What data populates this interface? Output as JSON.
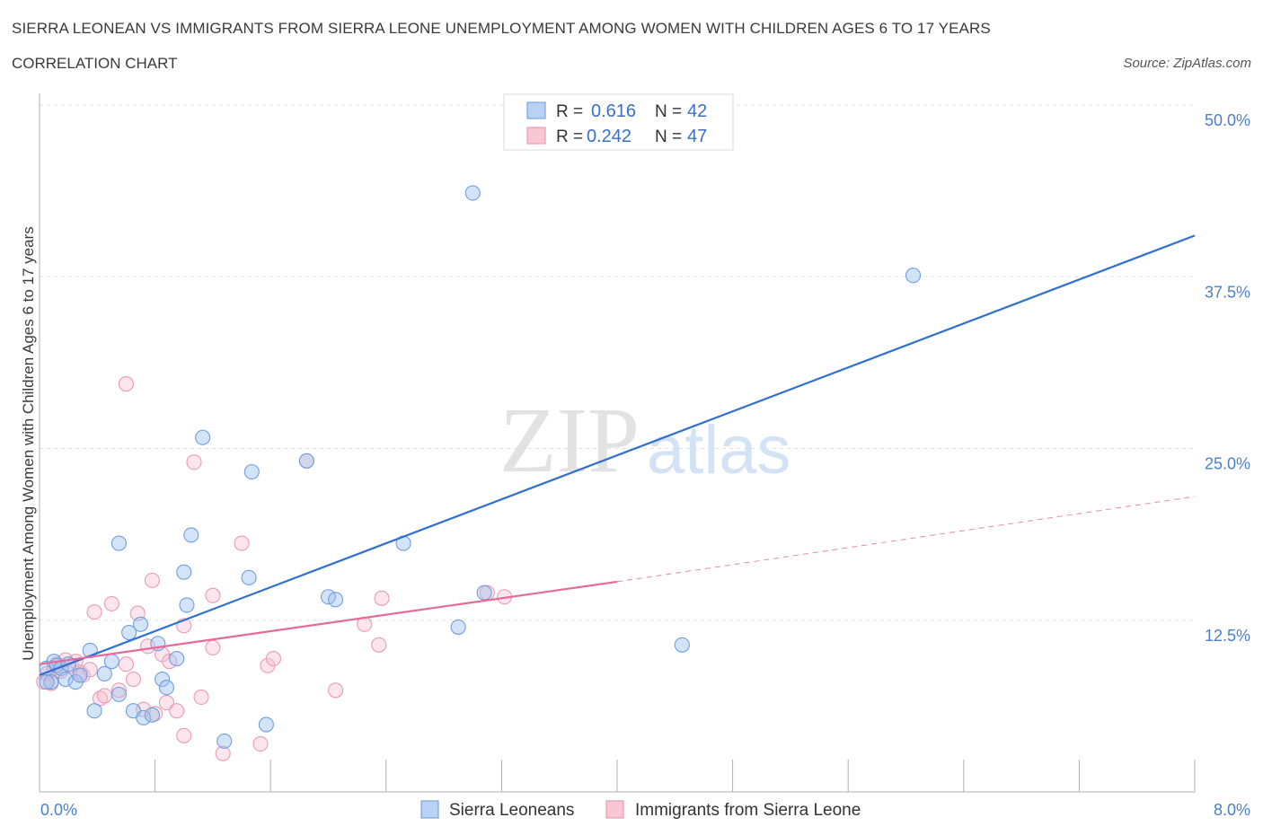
{
  "header": {
    "title": "SIERRA LEONEAN VS IMMIGRANTS FROM SIERRA LEONE UNEMPLOYMENT AMONG WOMEN WITH CHILDREN AGES 6 TO 17 YEARS",
    "subtitle": "CORRELATION CHART",
    "source": "Source: ZipAtlas.com"
  },
  "watermark": {
    "zip": "ZIP",
    "atlas": "atlas"
  },
  "stats_box": {
    "rows": [
      {
        "r_label": "R =",
        "r_value": "0.616",
        "n_label": "N =",
        "n_value": "42",
        "swatch_fill": "#b9d1f2",
        "swatch_stroke": "#7aa3de"
      },
      {
        "r_label": "R =",
        "r_value": "0.242",
        "n_label": "N =",
        "n_value": "47",
        "swatch_fill": "#f8c6d5",
        "swatch_stroke": "#e89ab3"
      }
    ]
  },
  "legend": {
    "items": [
      {
        "label": "Sierra Leoneans",
        "fill": "#b9d1f2",
        "stroke": "#7aa3de"
      },
      {
        "label": "Immigrants from Sierra Leone",
        "fill": "#f8c6d5",
        "stroke": "#e89ab3"
      }
    ]
  },
  "colors": {
    "blue_point_fill": "rgba(160,195,240,0.45)",
    "blue_point_stroke": "#6f9ee0",
    "blue_line": "#2f6fcf",
    "pink_point_fill": "rgba(248,190,208,0.40)",
    "pink_point_stroke": "#eb9ab6",
    "pink_line": "#e56a98",
    "grid": "#dfe3ea",
    "axis": "#b0b0b0"
  },
  "chart_data": {
    "type": "scatter",
    "title": "SIERRA LEONEAN VS IMMIGRANTS FROM SIERRA LEONE UNEMPLOYMENT AMONG WOMEN WITH CHILDREN AGES 6 TO 17 YEARS",
    "subtitle": "CORRELATION CHART",
    "xlabel": "",
    "ylabel": "Unemployment Among Women with Children Ages 6 to 17 years",
    "xlim": [
      0,
      8
    ],
    "ylim": [
      0,
      50
    ],
    "x_tick_labels": [
      {
        "value": 0,
        "label": "0.0%"
      },
      {
        "value": 8,
        "label": "8.0%"
      }
    ],
    "y_tick_labels": [
      {
        "value": 12.5,
        "label": "12.5%"
      },
      {
        "value": 25,
        "label": "25.0%"
      },
      {
        "value": 37.5,
        "label": "37.5%"
      },
      {
        "value": 50,
        "label": "50.0%"
      }
    ],
    "grid": true,
    "legend_position": "bottom",
    "series": [
      {
        "name": "Sierra Leoneans",
        "R": 0.616,
        "N": 42,
        "trend": {
          "x": [
            0.0,
            8.0
          ],
          "y": [
            8.5,
            40.5
          ],
          "style": "solid"
        },
        "points": [
          [
            0.05,
            9.0
          ],
          [
            0.08,
            8.0
          ],
          [
            0.1,
            9.5
          ],
          [
            0.12,
            9.2
          ],
          [
            0.15,
            9.0
          ],
          [
            0.18,
            8.2
          ],
          [
            0.2,
            9.3
          ],
          [
            0.25,
            8.0
          ],
          [
            0.28,
            8.5
          ],
          [
            0.35,
            10.3
          ],
          [
            0.38,
            5.9
          ],
          [
            0.45,
            8.6
          ],
          [
            0.5,
            9.5
          ],
          [
            0.55,
            7.1
          ],
          [
            0.55,
            18.1
          ],
          [
            0.62,
            11.6
          ],
          [
            0.65,
            5.9
          ],
          [
            0.7,
            12.2
          ],
          [
            0.72,
            5.4
          ],
          [
            0.78,
            5.6
          ],
          [
            0.82,
            10.8
          ],
          [
            0.85,
            8.2
          ],
          [
            0.88,
            7.6
          ],
          [
            0.95,
            9.7
          ],
          [
            1.0,
            16.0
          ],
          [
            1.02,
            13.6
          ],
          [
            1.05,
            18.7
          ],
          [
            1.13,
            25.8
          ],
          [
            1.28,
            3.7
          ],
          [
            1.45,
            15.6
          ],
          [
            1.47,
            23.3
          ],
          [
            1.57,
            4.9
          ],
          [
            1.85,
            24.1
          ],
          [
            2.0,
            14.2
          ],
          [
            2.05,
            14.0
          ],
          [
            2.52,
            18.1
          ],
          [
            2.9,
            12.0
          ],
          [
            3.08,
            14.5
          ],
          [
            3.0,
            43.6
          ],
          [
            4.45,
            10.7
          ],
          [
            6.05,
            37.6
          ],
          [
            0.05,
            8.0
          ]
        ]
      },
      {
        "name": "Immigrants from Sierra Leone",
        "R": 0.242,
        "N": 47,
        "trend": {
          "x": [
            0.0,
            4.0
          ],
          "y": [
            9.3,
            15.3
          ],
          "style": "solid"
        },
        "trend_extension": {
          "x": [
            4.0,
            8.0
          ],
          "y": [
            15.3,
            21.5
          ],
          "style": "dashed"
        },
        "points": [
          [
            0.03,
            8.0
          ],
          [
            0.05,
            8.6
          ],
          [
            0.08,
            7.9
          ],
          [
            0.1,
            9.0
          ],
          [
            0.12,
            9.3
          ],
          [
            0.15,
            8.8
          ],
          [
            0.18,
            9.6
          ],
          [
            0.22,
            9.2
          ],
          [
            0.25,
            9.5
          ],
          [
            0.28,
            8.7
          ],
          [
            0.3,
            8.5
          ],
          [
            0.35,
            8.9
          ],
          [
            0.38,
            13.1
          ],
          [
            0.42,
            6.8
          ],
          [
            0.45,
            7.0
          ],
          [
            0.5,
            13.7
          ],
          [
            0.55,
            7.4
          ],
          [
            0.6,
            9.3
          ],
          [
            0.6,
            29.7
          ],
          [
            0.65,
            8.2
          ],
          [
            0.68,
            13.0
          ],
          [
            0.72,
            6.0
          ],
          [
            0.75,
            10.6
          ],
          [
            0.78,
            15.4
          ],
          [
            0.8,
            5.7
          ],
          [
            0.85,
            10.0
          ],
          [
            0.88,
            6.5
          ],
          [
            0.9,
            9.5
          ],
          [
            0.95,
            5.9
          ],
          [
            1.0,
            12.1
          ],
          [
            1.0,
            4.1
          ],
          [
            1.07,
            24.0
          ],
          [
            1.12,
            6.9
          ],
          [
            1.2,
            10.5
          ],
          [
            1.2,
            14.3
          ],
          [
            1.27,
            2.8
          ],
          [
            1.4,
            18.1
          ],
          [
            1.53,
            3.5
          ],
          [
            1.58,
            9.2
          ],
          [
            1.62,
            9.7
          ],
          [
            1.85,
            24.1
          ],
          [
            2.05,
            7.4
          ],
          [
            2.25,
            12.2
          ],
          [
            2.35,
            10.7
          ],
          [
            2.37,
            14.1
          ],
          [
            3.1,
            14.5
          ],
          [
            3.22,
            14.2
          ]
        ]
      }
    ]
  }
}
